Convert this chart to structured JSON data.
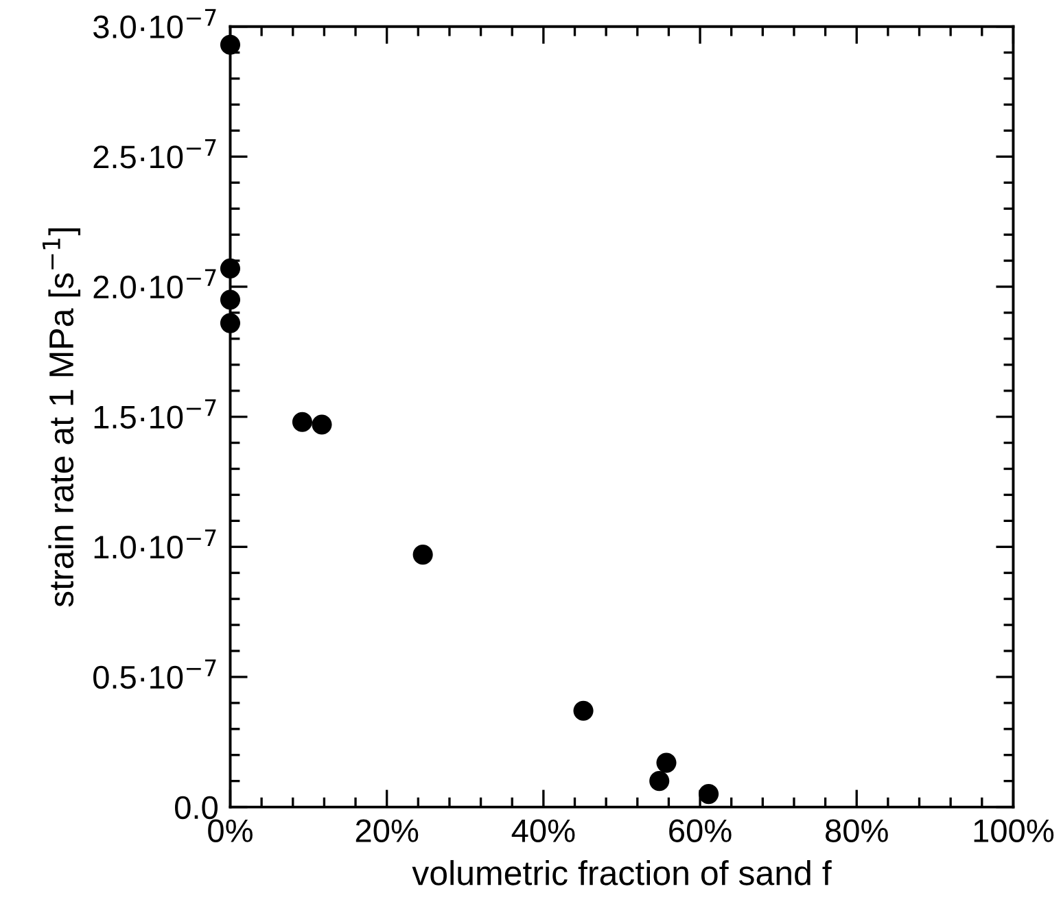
{
  "chart_data": {
    "type": "scatter",
    "xlabel": "volumetric fraction of sand f",
    "ylabel": "strain rate at 1 MPa [s$^{−1}$]",
    "x": [
      0,
      0,
      0,
      0,
      9.2,
      11.7,
      24.6,
      45.1,
      54.8,
      55.7,
      61.1
    ],
    "series": [
      {
        "color": "#000000",
        "values": [
          2.93e-07,
          2.07e-07,
          1.95e-07,
          1.86e-07,
          1.48e-07,
          1.47e-07,
          9.7e-08,
          3.7e-08,
          1e-08,
          1.7e-08,
          5e-09
        ]
      }
    ],
    "marker": "circle",
    "xlim": [
      0,
      100
    ],
    "xticks": [
      {
        "value": 0,
        "label": "0%"
      },
      {
        "value": 20,
        "label": "20%"
      },
      {
        "value": 40,
        "label": "40%"
      },
      {
        "value": 60,
        "label": "60%"
      },
      {
        "value": 80,
        "label": "80%"
      },
      {
        "value": 100,
        "label": "100%"
      }
    ],
    "ylim": [
      0,
      3e-07
    ],
    "yticks": [
      {
        "value": 0,
        "label": "0.0"
      },
      {
        "value": 5e-08,
        "label": "0.5·10$^{−7}$"
      },
      {
        "value": 1e-07,
        "label": "1.0·10$^{−7}$"
      },
      {
        "value": 1.5e-07,
        "label": "1.5·10$^{−7}$"
      },
      {
        "value": 2e-07,
        "label": "2.0·10$^{−7}$"
      },
      {
        "value": 2.5e-07,
        "label": "2.5·10$^{−7}$"
      },
      {
        "value": 3e-07,
        "label": "3.0·10$^{−7}$"
      }
    ],
    "grid": false
  }
}
